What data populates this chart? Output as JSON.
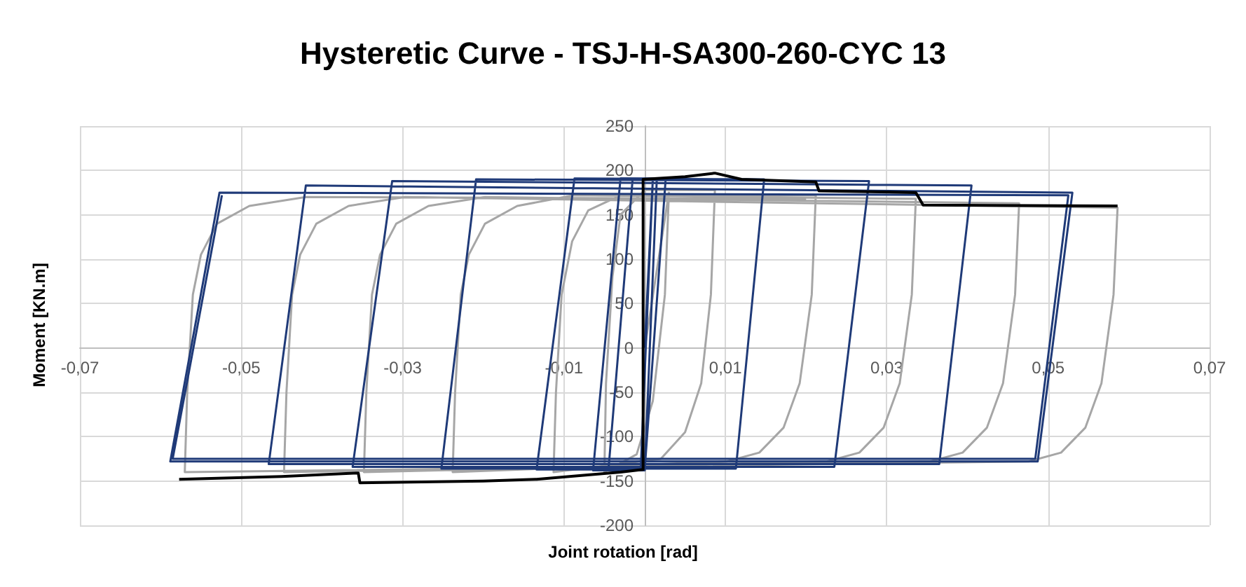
{
  "chart_data": {
    "type": "line",
    "title": "Hysteretic Curve - TSJ-H-SA300-260-CYC 13",
    "xlabel": "Joint rotation [rad]",
    "ylabel": "Moment [KN.m]",
    "xlim": [
      -0.07,
      0.07
    ],
    "xticks": [
      {
        "value": -0.07,
        "label": "-0,07"
      },
      {
        "value": -0.05,
        "label": "-0,05"
      },
      {
        "value": -0.03,
        "label": "-0,03"
      },
      {
        "value": -0.01,
        "label": "-0,01"
      },
      {
        "value": 0.01,
        "label": "0,01"
      },
      {
        "value": 0.03,
        "label": "0,03"
      },
      {
        "value": 0.05,
        "label": "0,05"
      },
      {
        "value": 0.07,
        "label": "0,07"
      }
    ],
    "ylim": [
      -200,
      250
    ],
    "yticks": [
      -200,
      -150,
      -100,
      -50,
      0,
      50,
      100,
      150,
      200,
      250
    ],
    "grid": true,
    "marker": "none",
    "line_style": "solid",
    "series": [
      {
        "color": "#a6a6a6",
        "x": [
          0,
          0.003,
          0.0025,
          0.001,
          -0.001,
          -0.005,
          -0.0048,
          -0.004,
          -0.003,
          0,
          0.0087,
          0.0082,
          0.007,
          0.005,
          0.002,
          -0.0113,
          -0.011,
          -0.0103,
          -0.009,
          -0.007,
          -0.003,
          0.0212,
          0.0207,
          0.0192,
          0.0172,
          0.0142,
          0.0102,
          -0.0238,
          -0.0235,
          -0.0228,
          -0.0218,
          -0.0198,
          -0.0158,
          -0.0088,
          0.0336,
          0.0331,
          0.0316,
          0.0296,
          0.0266,
          0.0226,
          -0.0348,
          -0.0345,
          -0.0338,
          -0.0328,
          -0.0308,
          -0.0268,
          -0.0198,
          0.0464,
          0.0459,
          0.0444,
          0.0424,
          0.0394,
          0.0354,
          -0.0447,
          -0.0444,
          -0.0437,
          -0.0427,
          -0.0407,
          -0.0367,
          -0.0297,
          0.0586,
          0.0581,
          0.0566,
          0.0546,
          0.0516,
          0.0476,
          -0.057,
          -0.0567,
          -0.056,
          -0.055,
          -0.053,
          -0.049,
          -0.042,
          0.02
        ],
        "values": [
          0,
          175,
          60,
          -60,
          -120,
          -140,
          -40,
          80,
          150,
          178,
          178,
          60,
          -40,
          -95,
          -125,
          -140,
          -50,
          60,
          120,
          155,
          172,
          172,
          60,
          -40,
          -90,
          -118,
          -128,
          -140,
          -50,
          60,
          105,
          140,
          160,
          172,
          168,
          60,
          -40,
          -90,
          -118,
          -128,
          -140,
          -50,
          60,
          105,
          140,
          160,
          170,
          163,
          60,
          -40,
          -90,
          -118,
          -128,
          -140,
          -50,
          60,
          105,
          140,
          160,
          170,
          158,
          60,
          -40,
          -90,
          -118,
          -128,
          -140,
          -50,
          60,
          105,
          140,
          160,
          170,
          168
        ]
      },
      {
        "color": "#1f3a78",
        "x": [
          0,
          0.001,
          -0.0005,
          -0.0045,
          -0.0015,
          0.0015,
          0,
          -0.0064,
          -0.003,
          0.0026,
          0,
          -0.0134,
          -0.0087,
          0.0148,
          0.0113,
          -0.0252,
          -0.0209,
          0.0278,
          0.0235,
          -0.0362,
          -0.0313,
          0.0405,
          0.0365,
          -0.0466,
          -0.042,
          0.053,
          0.0487,
          -0.0588,
          -0.0527,
          0.0525,
          0.0484,
          -0.0585,
          -0.0524
        ],
        "values": [
          0,
          190,
          -138,
          -138,
          190,
          191,
          -138,
          -138,
          191,
          191,
          -137,
          -137,
          191,
          190,
          -136,
          -136,
          190,
          188,
          -134,
          -134,
          188,
          183,
          -131,
          -131,
          183,
          175,
          -128,
          -128,
          175,
          172,
          -125,
          -125,
          172
        ]
      },
      {
        "color": "#000000",
        "x": [
          -0.0577,
          -0.045,
          -0.0355,
          -0.0353,
          -0.02,
          -0.0134,
          -0.003,
          -0.0002,
          -0.0002,
          0.005,
          0.0087,
          0.012,
          0.0212,
          0.0216,
          0.0336,
          0.0345,
          0.0586
        ],
        "values": [
          -148,
          -145,
          -141,
          -152,
          -150,
          -148,
          -140,
          -137,
          190,
          193,
          197,
          190,
          187,
          177,
          175,
          161,
          160
        ]
      }
    ]
  }
}
